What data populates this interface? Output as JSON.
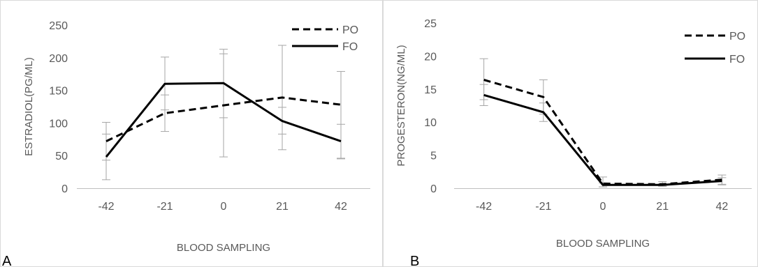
{
  "panels": [
    {
      "label": "A"
    },
    {
      "label": "B"
    }
  ],
  "colors": {
    "line": "#000000",
    "axis": "#bfbfbf",
    "error": "#a6a6a6",
    "text": "#595959",
    "border": "#d9d9d9"
  },
  "chart_data": [
    {
      "type": "line",
      "panel": "A",
      "xlabel": "BLOOD SAMPLING",
      "ylabel": "ESTRADIOL(PG/ML)",
      "categories": [
        "-42",
        "-21",
        "0",
        "21",
        "42"
      ],
      "ylim": [
        0,
        250
      ],
      "yticks": [
        0,
        50,
        100,
        150,
        200,
        250
      ],
      "grid": false,
      "legend": "top-right",
      "series": [
        {
          "name": "PO",
          "style": "dashed",
          "values": [
            72,
            115,
            127,
            139,
            128
          ],
          "error": [
            [
              43,
              101
            ],
            [
              87,
              143
            ],
            [
              48,
              206
            ],
            [
              59,
              219
            ],
            [
              45,
              179
            ]
          ]
        },
        {
          "name": "FO",
          "style": "solid",
          "values": [
            48,
            160,
            161,
            103,
            72
          ],
          "error": [
            [
              13,
              83
            ],
            [
              120,
              201
            ],
            [
              108,
              213
            ],
            [
              83,
              124
            ],
            [
              46,
              98
            ]
          ]
        }
      ]
    },
    {
      "type": "line",
      "panel": "B",
      "xlabel": "BLOOD SAMPLING",
      "ylabel": "PROGESTERON(NG/ML)",
      "categories": [
        "-42",
        "-21",
        "0",
        "21",
        "42"
      ],
      "ylim": [
        0,
        25
      ],
      "yticks": [
        0,
        5,
        10,
        15,
        20,
        25
      ],
      "grid": false,
      "legend": "top-right",
      "series": [
        {
          "name": "PO",
          "style": "dashed",
          "values": [
            16.4,
            13.8,
            0.7,
            0.6,
            1.3
          ],
          "error": [
            [
              13.4,
              19.6
            ],
            [
              11.2,
              16.4
            ],
            [
              0.2,
              1.7
            ],
            [
              0.3,
              1.0
            ],
            [
              0.6,
              2.0
            ]
          ]
        },
        {
          "name": "FO",
          "style": "solid",
          "values": [
            14.1,
            11.5,
            0.5,
            0.5,
            1.1
          ],
          "error": [
            [
              12.5,
              15.7
            ],
            [
              10.1,
              12.9
            ],
            [
              0.2,
              0.8
            ],
            [
              0.3,
              0.7
            ],
            [
              0.5,
              1.6
            ]
          ]
        }
      ]
    }
  ]
}
